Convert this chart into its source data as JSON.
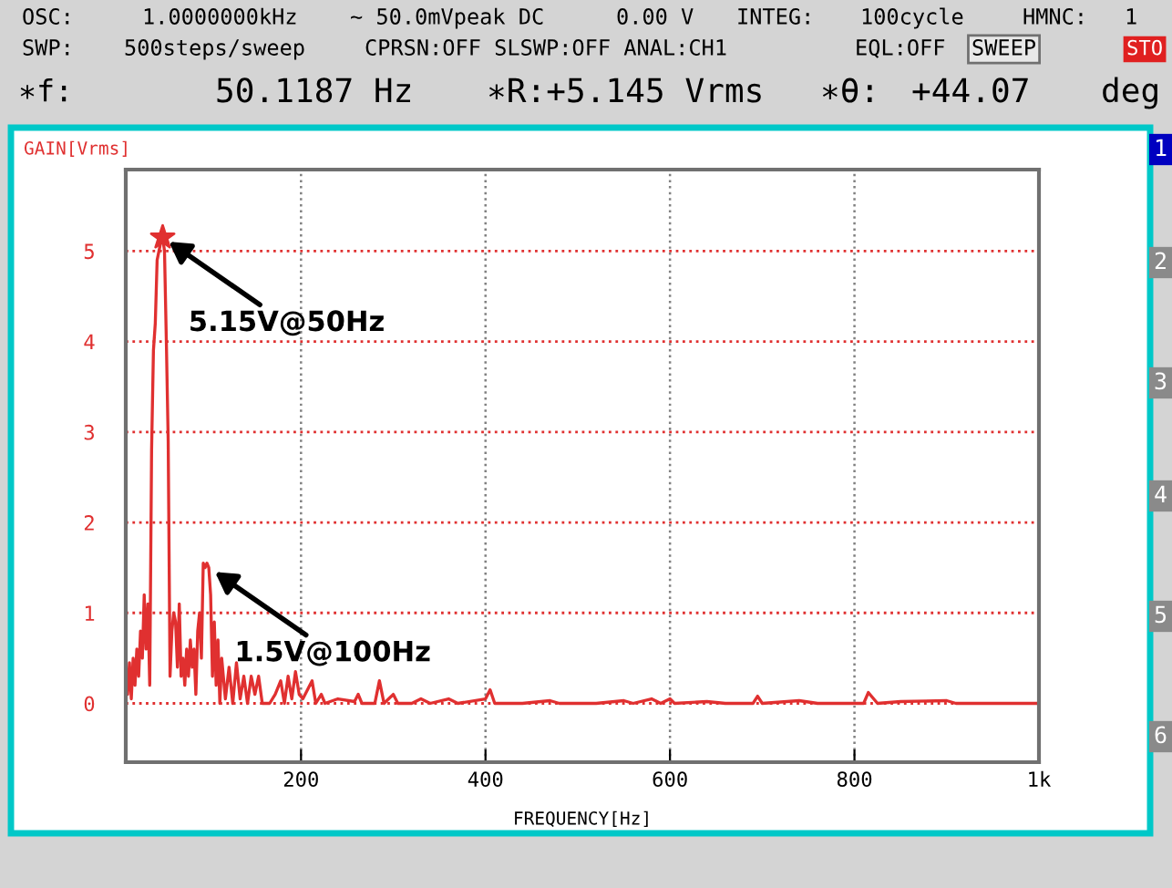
{
  "chart_data": {
    "type": "line",
    "xlabel": "FREQUENCY[Hz]",
    "ylabel": "GAIN[Vrms]",
    "xlim": [
      10,
      1000
    ],
    "ylim": [
      -0.65,
      5.9
    ],
    "xticks": [
      200,
      400,
      600,
      800,
      {
        "value": 1000,
        "label": "1k"
      }
    ],
    "yticks": [
      0,
      1,
      2,
      3,
      4,
      5
    ],
    "grid": true,
    "marker": "none",
    "line_style": "solid",
    "series": [
      {
        "color": "#e03030",
        "x": [
          10,
          12,
          14,
          16,
          18,
          20,
          22,
          24,
          26,
          28,
          30,
          32,
          34,
          36,
          38,
          40,
          42,
          44,
          46,
          48,
          50,
          52,
          54,
          56,
          58,
          60,
          62,
          64,
          66,
          68,
          70,
          72,
          74,
          76,
          78,
          80,
          82,
          84,
          86,
          88,
          90,
          92,
          94,
          96,
          98,
          100,
          102,
          104,
          106,
          108,
          110,
          112,
          114,
          118,
          122,
          126,
          130,
          134,
          138,
          142,
          146,
          150,
          154,
          158,
          166,
          172,
          178,
          182,
          186,
          190,
          194,
          198,
          202,
          212,
          216,
          222,
          226,
          240,
          258,
          262,
          266,
          280,
          285,
          290,
          300,
          305,
          320,
          330,
          340,
          360,
          370,
          400,
          405,
          410,
          440,
          470,
          480,
          520,
          550,
          560,
          580,
          590,
          600,
          605,
          640,
          660,
          690,
          695,
          700,
          740,
          760,
          810,
          815,
          825,
          850,
          900,
          910,
          1000
        ],
        "values": [
          0.3,
          0.1,
          0.45,
          0.05,
          0.5,
          0.2,
          0.6,
          0.3,
          0.8,
          0.5,
          1.2,
          0.6,
          1.1,
          0.2,
          2.8,
          3.9,
          4.2,
          4.9,
          5.0,
          5.1,
          5.15,
          5.0,
          4.0,
          2.9,
          0.3,
          0.8,
          1.0,
          0.9,
          0.4,
          1.1,
          0.3,
          0.5,
          0.2,
          0.6,
          0.3,
          0.7,
          0.4,
          0.6,
          0.1,
          0.8,
          1.0,
          0.5,
          1.55,
          1.5,
          1.55,
          1.5,
          1.2,
          0.3,
          0.9,
          0.2,
          0.7,
          0.0,
          0.5,
          0.05,
          0.4,
          0.0,
          0.45,
          0.05,
          0.3,
          0.0,
          0.3,
          0.1,
          0.3,
          0.0,
          0.0,
          0.1,
          0.25,
          0.0,
          0.3,
          0.05,
          0.35,
          0.1,
          0.05,
          0.25,
          0.0,
          0.1,
          0.0,
          0.05,
          0.02,
          0.1,
          0.0,
          0.0,
          0.25,
          0.0,
          0.1,
          0.0,
          0.0,
          0.05,
          0.0,
          0.05,
          0.0,
          0.05,
          0.15,
          0.0,
          0.0,
          0.03,
          0.0,
          0.0,
          0.03,
          0.0,
          0.05,
          0.0,
          0.05,
          0.0,
          0.02,
          0.0,
          0.0,
          0.08,
          0.0,
          0.03,
          0.0,
          0.0,
          0.12,
          0.0,
          0.02,
          0.03,
          0.0,
          0.0
        ]
      },
      {
        "type": "scatter",
        "marker": "star",
        "color": "#e03030",
        "x": [
          50
        ],
        "values": [
          5.15
        ]
      }
    ],
    "annotations": [
      "OSC:",
      "1.0000000kHz",
      "∼ 50.0mVpeak DC",
      "0.00 V",
      "INTEG:",
      "100cycle",
      "HMNC:",
      "1",
      "SWP:",
      "500steps/sweep",
      "CPRSN:OFF SLSWP:OFF ANAL:CH1",
      "EQL:OFF",
      "SWEEP",
      "STO",
      "∗f:",
      "50.1187 Hz",
      "∗R:+5.145 Vrms",
      "∗θ:",
      "+44.07",
      "deg",
      "1",
      "2",
      "3",
      "4",
      "5",
      "6",
      {
        "text": "5.15V@50Hz",
        "x": 50,
        "y": 5.15
      },
      {
        "text": "1.5V@100Hz",
        "x": 100,
        "y": 1.5
      }
    ]
  }
}
